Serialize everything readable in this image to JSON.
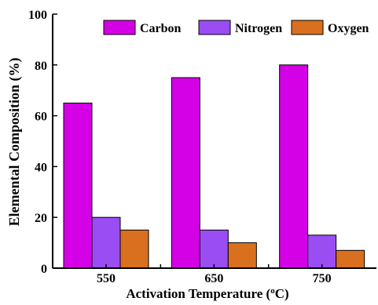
{
  "chart_data": {
    "type": "bar",
    "title": "",
    "xlabel": "Activation Temperature (",
    "xlabel_sup": "o",
    "xlabel_tail": "C)",
    "ylabel": "Elemental Composition (%)",
    "categories": [
      "550",
      "650",
      "750"
    ],
    "ylim": [
      0,
      100
    ],
    "yticks": [
      0,
      20,
      40,
      60,
      80,
      100
    ],
    "grid": false,
    "legend_position": "top-right",
    "series": [
      {
        "name": "Carbon",
        "color": "#d400e6",
        "values": [
          65,
          75,
          80
        ]
      },
      {
        "name": "Nitrogen",
        "color": "#9a4df2",
        "values": [
          20,
          15,
          13
        ]
      },
      {
        "name": "Oxygen",
        "color": "#d9701f",
        "values": [
          15,
          10,
          7
        ]
      }
    ]
  }
}
